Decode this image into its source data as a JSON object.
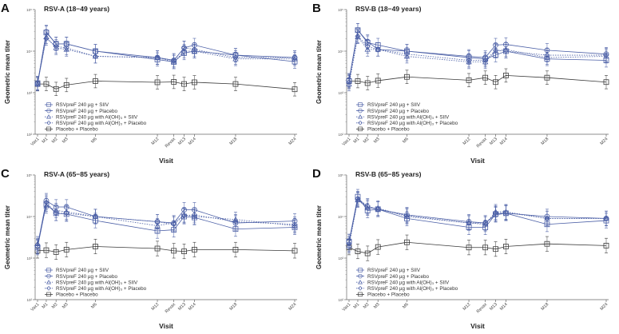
{
  "series_names": [
    "RSVpreF 240 µg + SIIV",
    "RSVpreF 240 µg + Placebo",
    "RSVpreF 240 µg with Al(OH)₃ + SIIV",
    "RSVpreF 240 µg with Al(OH)₃ + Placebo",
    "Placebo + Placebo"
  ],
  "colors": {
    "vaccine": "#4b5fa6",
    "placebo": "#3a3a3a",
    "axis": "#555555"
  },
  "chart_data": [
    {
      "type": "line",
      "panel": "A",
      "title": "RSV-A (18−49 years)",
      "xlabel": "Visit",
      "ylabel": "Geometric mean titer",
      "yscale": "log",
      "ylim": [
        100,
        100000
      ],
      "yticks": [
        "10²",
        "10³",
        "10⁴",
        "10⁵"
      ],
      "legend": "bottom-left",
      "error_factor": 1.45,
      "categories": [
        "Vax1",
        "M1",
        "M2",
        "M3",
        "M6",
        "M12",
        "Revax",
        "M13",
        "M14",
        "M18",
        "M24"
      ],
      "series": [
        {
          "name": "RSVpreF 240 µg + SIIV",
          "marker": "square",
          "values": [
            1700,
            28000,
            15000,
            15000,
            10000,
            6300,
            5500,
            9000,
            10000,
            8000,
            5600
          ]
        },
        {
          "name": "RSVpreF 240 µg + Placebo",
          "marker": "circle",
          "values": [
            1600,
            29000,
            15000,
            15000,
            10000,
            7000,
            6000,
            12000,
            14000,
            8000,
            7000
          ]
        },
        {
          "name": "RSVpreF 240 µg with Al(OH)₃ + SIIV",
          "marker": "triangle",
          "values": [
            1600,
            22000,
            12000,
            11000,
            7500,
            7000,
            5500,
            10000,
            10000,
            6500,
            6500
          ]
        },
        {
          "name": "RSVpreF 240 µg with Al(OH)₃ + Placebo",
          "marker": "diamond",
          "values": [
            1700,
            20000,
            13000,
            12000,
            7500,
            7000,
            6000,
            12000,
            11000,
            7000,
            7000
          ]
        },
        {
          "name": "Placebo + Placebo",
          "marker": "square",
          "values": [
            1620,
            1620,
            1230,
            1530,
            1900,
            1780,
            1820,
            1620,
            1780,
            1620,
            1210
          ]
        }
      ]
    },
    {
      "type": "line",
      "panel": "B",
      "title": "RSV-B (18−49 years)",
      "xlabel": "Visit",
      "ylabel": "Geometric mean titer",
      "yscale": "log",
      "ylim": [
        100,
        100000
      ],
      "yticks": [
        "10²",
        "10³",
        "10⁴",
        "10⁵"
      ],
      "legend": "bottom-left",
      "error_factor": 1.45,
      "categories": [
        "Vax1",
        "M1",
        "M2",
        "M3",
        "M6",
        "M12",
        "Revax",
        "M13",
        "M14",
        "M18",
        "M24"
      ],
      "series": [
        {
          "name": "RSVpreF 240 µg + SIIV",
          "marker": "square",
          "values": [
            1900,
            32000,
            16000,
            14000,
            10000,
            7000,
            6500,
            8000,
            10000,
            6500,
            6000
          ]
        },
        {
          "name": "RSVpreF 240 µg + Placebo",
          "marker": "circle",
          "values": [
            2000,
            32000,
            17000,
            11000,
            10000,
            7500,
            7000,
            14000,
            14500,
            10500,
            8500
          ]
        },
        {
          "name": "RSVpreF 240 µg with Al(OH)₃ + SIIV",
          "marker": "triangle",
          "values": [
            1600,
            22000,
            11000,
            11000,
            7500,
            5500,
            5500,
            10000,
            11000,
            7000,
            7500
          ]
        },
        {
          "name": "RSVpreF 240 µg with Al(OH)₃ + Placebo",
          "marker": "diamond",
          "values": [
            1800,
            23000,
            13000,
            11000,
            8500,
            6000,
            6000,
            10500,
            10000,
            8000,
            8000
          ]
        },
        {
          "name": "Placebo + Placebo",
          "marker": "square",
          "values": [
            1900,
            1900,
            1700,
            1950,
            2400,
            2000,
            2300,
            1800,
            2600,
            2300,
            1800
          ]
        }
      ]
    },
    {
      "type": "line",
      "panel": "C",
      "title": "RSV-A (65−85 years)",
      "xlabel": "Visit",
      "ylabel": "Geometric mean titer",
      "yscale": "log",
      "ylim": [
        100,
        100000
      ],
      "yticks": [
        "10²",
        "10³",
        "10⁴",
        "10⁵"
      ],
      "legend": "bottom-left",
      "error_factor": 1.5,
      "categories": [
        "Vax1",
        "M1",
        "M2",
        "M3",
        "M6",
        "M12",
        "Revax",
        "M13",
        "M14",
        "M18",
        "M24"
      ],
      "series": [
        {
          "name": "RSVpreF 240 µg + SIIV",
          "marker": "square",
          "values": [
            1800,
            20000,
            12000,
            11500,
            8000,
            4500,
            4800,
            10000,
            9500,
            5000,
            5500
          ]
        },
        {
          "name": "RSVpreF 240 µg + Placebo",
          "marker": "circle",
          "values": [
            2000,
            24000,
            17000,
            17000,
            10000,
            7500,
            7000,
            14500,
            14500,
            7000,
            7800
          ]
        },
        {
          "name": "RSVpreF 240 µg with Al(OH)₃ + SIIV",
          "marker": "triangle",
          "values": [
            2200,
            18000,
            14000,
            13000,
            10000,
            6000,
            7000,
            11000,
            10000,
            8500,
            6000
          ]
        },
        {
          "name": "RSVpreF 240 µg with Al(OH)₃ + Placebo",
          "marker": "diamond",
          "values": [
            1900,
            22000,
            12000,
            12000,
            10000,
            7500,
            6500,
            10500,
            11000,
            7500,
            6500
          ]
        },
        {
          "name": "Placebo + Placebo",
          "marker": "square",
          "values": [
            1500,
            1550,
            1400,
            1600,
            1900,
            1700,
            1500,
            1450,
            1600,
            1600,
            1500
          ]
        }
      ]
    },
    {
      "type": "line",
      "panel": "D",
      "title": "RSV-B (65−85 years)",
      "xlabel": "Visit",
      "ylabel": "Geometric mean titer",
      "yscale": "log",
      "ylim": [
        100,
        100000
      ],
      "yticks": [
        "10²",
        "10³",
        "10⁴",
        "10⁵"
      ],
      "legend": "bottom-left",
      "error_factor": 1.5,
      "categories": [
        "Vax1",
        "M1",
        "M2",
        "M3",
        "M6",
        "M12",
        "Revax",
        "M13",
        "M14",
        "M18",
        "M24"
      ],
      "series": [
        {
          "name": "RSVpreF 240 µg + SIIV",
          "marker": "square",
          "values": [
            2500,
            30000,
            14000,
            15000,
            9000,
            5500,
            5500,
            11500,
            12000,
            6500,
            8000
          ]
        },
        {
          "name": "RSVpreF 240 µg + Placebo",
          "marker": "circle",
          "values": [
            2500,
            26000,
            17000,
            15000,
            11000,
            7500,
            7000,
            11000,
            12000,
            10000,
            9000
          ]
        },
        {
          "name": "RSVpreF 240 µg with Al(OH)₃ + SIIV",
          "marker": "triangle",
          "values": [
            2000,
            25000,
            16000,
            16000,
            10000,
            7000,
            6500,
            13000,
            13000,
            9000,
            9000
          ]
        },
        {
          "name": "RSVpreF 240 µg with Al(OH)₃ + Placebo",
          "marker": "diamond",
          "values": [
            2200,
            27000,
            18000,
            15000,
            10500,
            7000,
            7000,
            12000,
            12500,
            9000,
            9000
          ]
        },
        {
          "name": "Placebo + Placebo",
          "marker": "square",
          "values": [
            1800,
            1450,
            1300,
            1850,
            2400,
            1800,
            1800,
            1650,
            1900,
            2200,
            2000
          ]
        }
      ]
    }
  ]
}
